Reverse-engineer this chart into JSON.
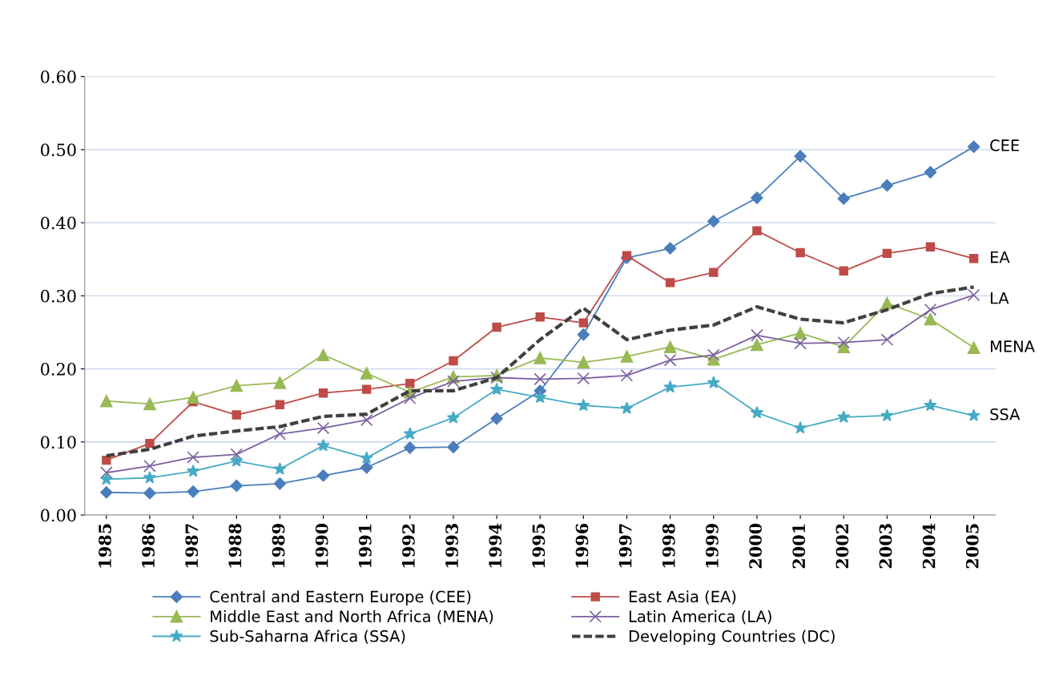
{
  "chart_data": {
    "type": "line",
    "categories": [
      "1985",
      "1986",
      "1987",
      "1988",
      "1989",
      "1990",
      "1991",
      "1992",
      "1993",
      "1994",
      "1995",
      "1996",
      "1997",
      "1998",
      "1999",
      "2000",
      "2001",
      "2002",
      "2003",
      "2004",
      "2005"
    ],
    "series": [
      {
        "name": "Central and Eastern Europe (CEE)",
        "color": "#4a7ebb",
        "marker": "diamond",
        "line_style": "solid",
        "values": [
          0.031,
          0.03,
          0.032,
          0.04,
          0.043,
          0.054,
          0.065,
          0.092,
          0.093,
          0.132,
          0.17,
          0.247,
          0.352,
          0.365,
          0.402,
          0.434,
          0.491,
          0.433,
          0.451,
          0.469,
          0.504
        ]
      },
      {
        "name": "East Asia (EA)",
        "color": "#be4b48",
        "marker": "square",
        "line_style": "solid",
        "values": [
          0.075,
          0.098,
          0.155,
          0.137,
          0.151,
          0.167,
          0.172,
          0.18,
          0.211,
          0.257,
          0.271,
          0.263,
          0.355,
          0.318,
          0.332,
          0.389,
          0.359,
          0.334,
          0.358,
          0.367,
          0.351
        ]
      },
      {
        "name": "Middle East and North Africa (MENA)",
        "color": "#98b954",
        "marker": "triangle",
        "line_style": "solid",
        "values": [
          0.156,
          0.152,
          0.161,
          0.177,
          0.181,
          0.219,
          0.194,
          0.168,
          0.189,
          0.191,
          0.215,
          0.209,
          0.217,
          0.23,
          0.213,
          0.233,
          0.249,
          0.23,
          0.29,
          0.268,
          0.229
        ]
      },
      {
        "name": "Latin America (LA)",
        "color": "#7d60a0",
        "marker": "cross",
        "line_style": "solid",
        "values": [
          0.058,
          0.067,
          0.079,
          0.083,
          0.111,
          0.119,
          0.13,
          0.16,
          0.183,
          0.188,
          0.186,
          0.187,
          0.191,
          0.212,
          0.219,
          0.246,
          0.235,
          0.236,
          0.24,
          0.281,
          0.301
        ]
      },
      {
        "name": "Sub-Saharna Africa (SSA)",
        "color": "#46aac5",
        "marker": "star",
        "line_style": "solid",
        "values": [
          0.049,
          0.051,
          0.06,
          0.074,
          0.063,
          0.095,
          0.078,
          0.111,
          0.133,
          0.172,
          0.161,
          0.15,
          0.146,
          0.175,
          0.181,
          0.14,
          0.119,
          0.134,
          0.136,
          0.15,
          0.136
        ]
      },
      {
        "name": "Developing Countries (DC)",
        "color": "#404040",
        "marker": "none",
        "line_style": "dashed",
        "values": [
          0.081,
          0.09,
          0.108,
          0.115,
          0.121,
          0.135,
          0.138,
          0.17,
          0.17,
          0.188,
          0.24,
          0.283,
          0.24,
          0.253,
          0.26,
          0.285,
          0.268,
          0.263,
          0.281,
          0.303,
          0.312
        ]
      }
    ],
    "ylim": [
      0,
      0.6
    ],
    "yticks": [
      {
        "value": 0,
        "label": "0.00"
      },
      {
        "value": 0.1,
        "label": "0.10"
      },
      {
        "value": 0.2,
        "label": "0.20"
      },
      {
        "value": 0.3,
        "label": "0.30"
      },
      {
        "value": 0.4,
        "label": "0.40"
      },
      {
        "value": 0.5,
        "label": "0.50"
      },
      {
        "value": 0.6,
        "label": "0.60"
      }
    ],
    "grid": "y",
    "legend": "bottom",
    "annotations": [
      {
        "text": "CEE",
        "x": "2005",
        "y": 0.504
      },
      {
        "text": "EA",
        "x": "2005",
        "y": 0.351
      },
      {
        "text": "LA",
        "x": "2005",
        "y": 0.295
      },
      {
        "text": "MENA",
        "x": "2005",
        "y": 0.229
      },
      {
        "text": "SSA",
        "x": "2005",
        "y": 0.136
      }
    ]
  }
}
